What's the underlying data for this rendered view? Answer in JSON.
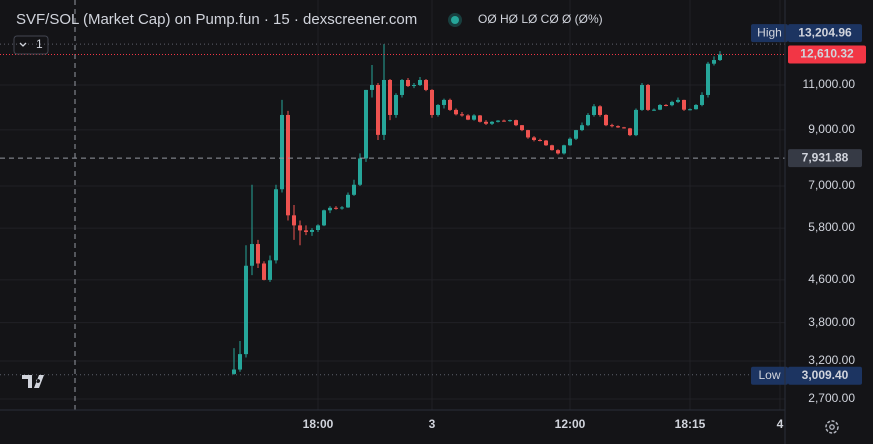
{
  "chart_data": {
    "type": "candlestick",
    "title": "SVF/SOL (Market Cap) on Pump.fun · 15 · dexscreener.com",
    "ohlc_status": "OØ HØ LØ CØ Ø (Ø%)",
    "indicator_count": "1",
    "categories": [
      null,
      null,
      null,
      null,
      null,
      null,
      null,
      null,
      null,
      null,
      null,
      null,
      null,
      null,
      "18:00",
      null,
      null,
      null,
      null,
      null,
      null,
      null,
      null,
      null,
      null,
      null,
      null,
      null,
      null,
      null,
      null,
      null,
      null,
      "3",
      null,
      null,
      null,
      null,
      null,
      null,
      null,
      null,
      null,
      null,
      null,
      null,
      null,
      null,
      null,
      null,
      null,
      null,
      null,
      null,
      null,
      null,
      "12:00",
      null,
      null,
      null,
      null,
      null,
      null,
      null,
      null,
      null,
      null,
      null,
      null,
      null,
      null,
      null,
      null,
      null,
      null,
      null,
      "18:15",
      null,
      null,
      null,
      null,
      null,
      null,
      null,
      null,
      null,
      null,
      null,
      null,
      null,
      null,
      "4"
    ],
    "open": [
      3020,
      3080,
      3300,
      4900,
      5400,
      4950,
      4600,
      5020,
      6900,
      9620,
      6140,
      5870,
      5740,
      5700,
      5750,
      5870,
      6280,
      6350,
      6340,
      6360,
      6730,
      7040,
      7920,
      10760,
      11000,
      8800,
      11250,
      9620,
      10520,
      11250,
      10950,
      11000,
      11250,
      10760,
      9620,
      10060,
      10290,
      9840,
      9650,
      9600,
      9420,
      9600,
      9330,
      9250,
      9330,
      9380,
      9360,
      9400,
      9190,
      8990,
      8700,
      8600,
      8580,
      8400,
      8220,
      8100,
      8400,
      8650,
      8990,
      9190,
      9620,
      10000,
      9620,
      9190,
      9150,
      9100,
      9060,
      8790,
      9840,
      11000,
      9840,
      9850,
      10060,
      10050,
      10200,
      10290,
      9850,
      9870,
      10060,
      10520,
      12100,
      12300,
      null,
      null,
      null,
      null,
      null,
      null,
      null,
      null,
      null,
      null
    ],
    "high": [
      3390,
      3500,
      5370,
      7040,
      5500,
      5000,
      5130,
      7040,
      10290,
      9800,
      6430,
      6000,
      5870,
      5800,
      5900,
      6300,
      6400,
      6400,
      6400,
      6800,
      7200,
      8100,
      10760,
      12030,
      11100,
      13204.96,
      11300,
      10600,
      11300,
      11350,
      11100,
      11400,
      11300,
      10800,
      10100,
      10350,
      10350,
      9900,
      9750,
      9650,
      9650,
      9620,
      9400,
      9360,
      9400,
      9420,
      9420,
      9420,
      9200,
      9000,
      8750,
      8650,
      8600,
      8420,
      8250,
      8420,
      8700,
      9000,
      9300,
      9700,
      10100,
      10050,
      9650,
      9250,
      9180,
      9120,
      9080,
      9900,
      11100,
      11050,
      9900,
      10100,
      10100,
      10250,
      10400,
      10300,
      9900,
      10100,
      10650,
      12200,
      12500,
      12800,
      null,
      null,
      null,
      null,
      null,
      null,
      null,
      null,
      null,
      null
    ],
    "low": [
      3009.4,
      3050,
      3250,
      4700,
      4850,
      4590,
      4560,
      4950,
      6800,
      6000,
      5500,
      5370,
      5620,
      5600,
      5700,
      5850,
      6200,
      6300,
      6300,
      6350,
      6700,
      7000,
      7800,
      10400,
      8600,
      8600,
      9400,
      9500,
      10400,
      10900,
      10850,
      10950,
      10700,
      9500,
      9550,
      9900,
      9800,
      9600,
      9550,
      9400,
      9380,
      9300,
      9200,
      9200,
      9300,
      9330,
      9330,
      9150,
      8950,
      8650,
      8550,
      8550,
      8380,
      8200,
      8060,
      8060,
      8380,
      8600,
      8950,
      9150,
      9550,
      9550,
      9150,
      9100,
      9080,
      9050,
      8750,
      8750,
      9800,
      9800,
      9800,
      9830,
      10000,
      10000,
      10150,
      9800,
      9820,
      9850,
      10000,
      10400,
      12000,
      12250,
      null,
      null,
      null,
      null,
      null,
      null,
      null,
      null,
      null,
      null
    ],
    "close": [
      3080,
      3300,
      4900,
      5400,
      4950,
      4600,
      5020,
      6900,
      9620,
      6140,
      5870,
      5740,
      5700,
      5750,
      5870,
      6280,
      6350,
      6340,
      6360,
      6730,
      7040,
      7920,
      10760,
      11000,
      8800,
      11250,
      9620,
      10520,
      11250,
      10950,
      11000,
      11250,
      10760,
      9620,
      10060,
      10290,
      9840,
      9650,
      9600,
      9420,
      9600,
      9330,
      9250,
      9330,
      9380,
      9360,
      9400,
      9190,
      8990,
      8700,
      8600,
      8580,
      8400,
      8220,
      8100,
      8400,
      8650,
      8990,
      9190,
      9620,
      10000,
      9620,
      9190,
      9150,
      9100,
      9060,
      8790,
      9840,
      11000,
      9840,
      9850,
      10060,
      10050,
      10200,
      10290,
      9850,
      9870,
      10060,
      10520,
      12100,
      12300,
      12610.32,
      null,
      null,
      null,
      null,
      null,
      null,
      null,
      null,
      null,
      null
    ],
    "up_color": "#26a69a",
    "down_color": "#ef5350",
    "ylim": [
      2570,
      16090
    ],
    "log_scale": true,
    "grid": true,
    "yticks": [
      {
        "value": 2700,
        "label": "2,700.00"
      },
      {
        "value": 3200,
        "label": "3,200.00"
      },
      {
        "value": 3800,
        "label": "3,800.00"
      },
      {
        "value": 4600,
        "label": "4,600.00"
      },
      {
        "value": 5800,
        "label": "5,800.00"
      },
      {
        "value": 7000,
        "label": "7,000.00"
      },
      {
        "value": 9000,
        "label": "9,000.00"
      },
      {
        "value": 11000,
        "label": "11,000.00"
      }
    ],
    "price_lines": [
      {
        "name": "High",
        "value": 13204.96,
        "label": "13,204.96"
      },
      {
        "name": "Low",
        "value": 3009.4,
        "label": "3,009.40"
      }
    ],
    "last_price": {
      "value": 12610.32,
      "label": "12,610.32",
      "color": "#f23645"
    },
    "crosshair_price": {
      "value": 7931.88,
      "label": "7,931.88"
    }
  }
}
